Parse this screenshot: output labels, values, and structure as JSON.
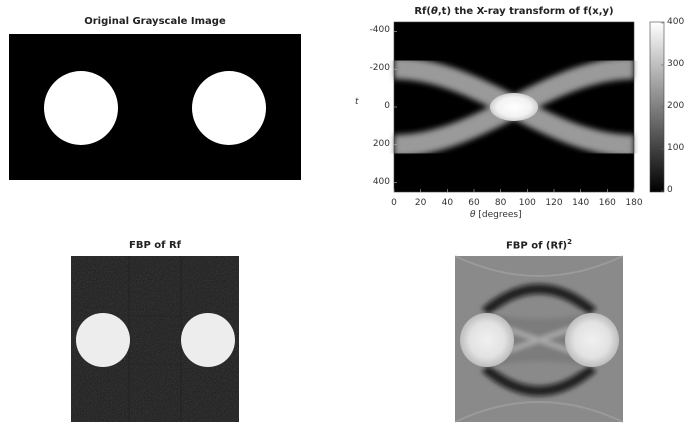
{
  "panels": {
    "original": {
      "title": "Original Grayscale Image"
    },
    "radon": {
      "title_prefix": "Rf(",
      "title_theta": "θ",
      "title_suffix": ",t) the X-ray transform of f(x,y)",
      "ylabel": "t",
      "xlabel_theta": "θ",
      "xlabel_rest": " [degrees]"
    },
    "fbp": {
      "title": "FBP of Rf"
    },
    "fbp2": {
      "title_base": "FBP of (Rf)",
      "title_sup": "2"
    }
  },
  "chart_data": {
    "type": "heatmap",
    "x_ticks": [
      "0",
      "20",
      "40",
      "60",
      "80",
      "100",
      "120",
      "140",
      "160",
      "180"
    ],
    "y_ticks": [
      "-400",
      "-200",
      "0",
      "200",
      "400"
    ],
    "xlim": [
      0,
      180
    ],
    "ylim": [
      -450,
      450
    ],
    "colorbar": {
      "ticks": [
        "400",
        "300",
        "200",
        "100",
        "0"
      ],
      "range": [
        0,
        400
      ]
    },
    "colors": {
      "background": "#000000",
      "band": "#9a9a9a",
      "peak": "#ffffff"
    }
  }
}
